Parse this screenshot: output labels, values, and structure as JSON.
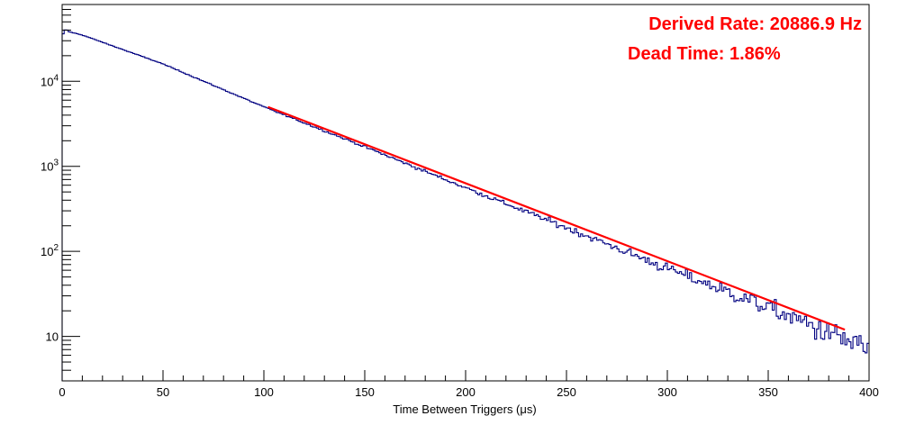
{
  "chart_data": {
    "type": "histogram",
    "title": "",
    "xlabel": "Time Between Triggers (μs)",
    "ylabel": "",
    "xlim": [
      0,
      400
    ],
    "ylim": [
      3,
      80000
    ],
    "y_scale": "log",
    "grid": false,
    "x_ticks": [
      0,
      50,
      100,
      150,
      200,
      250,
      300,
      350,
      400
    ],
    "y_ticks": [
      {
        "value": 10,
        "label": "10"
      },
      {
        "value": 100,
        "base": "10",
        "exp": "2"
      },
      {
        "value": 1000,
        "base": "10",
        "exp": "3"
      },
      {
        "value": 10000,
        "base": "10",
        "exp": "4"
      }
    ],
    "histogram": {
      "color": "#000080",
      "bin_width": 1,
      "peak_count": 40000,
      "peak_x": 2,
      "counts_at": [
        {
          "x": 0,
          "y": 40000
        },
        {
          "x": 10,
          "y": 35000
        },
        {
          "x": 50,
          "y": 16000
        },
        {
          "x": 100,
          "y": 5000
        },
        {
          "x": 150,
          "y": 1700
        },
        {
          "x": 200,
          "y": 560
        },
        {
          "x": 250,
          "y": 190
        },
        {
          "x": 300,
          "y": 63
        },
        {
          "x": 350,
          "y": 22
        },
        {
          "x": 400,
          "y": 7
        }
      ]
    },
    "fit": {
      "color": "#ff0000",
      "x_range": [
        102,
        388
      ],
      "y_at_start": 5000,
      "y_at_end": 12
    },
    "annotations": [
      {
        "text": "Derived Rate: 20886.9 Hz",
        "color": "#ff0000"
      },
      {
        "text": "Dead Time: 1.86%",
        "color": "#ff0000"
      }
    ]
  }
}
